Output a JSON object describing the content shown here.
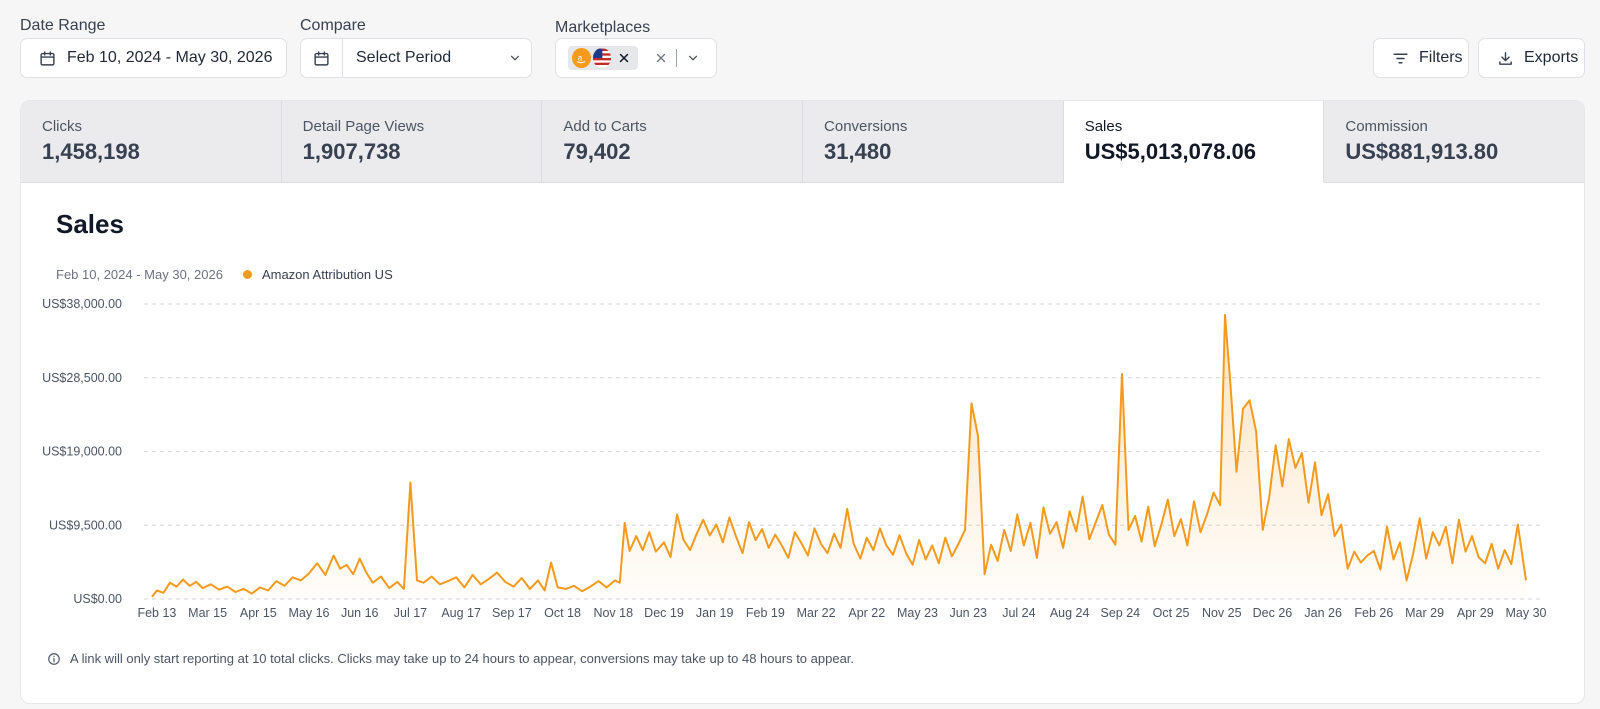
{
  "filters": {
    "date_range": {
      "label": "Date Range",
      "value": "Feb 10, 2024 - May 30, 2026"
    },
    "compare": {
      "label": "Compare",
      "placeholder": "Select Period"
    },
    "marketplaces": {
      "label": "Marketplaces"
    },
    "filters_button": "Filters",
    "exports_button": "Exports"
  },
  "metrics": [
    {
      "label": "Clicks",
      "value": "1,458,198"
    },
    {
      "label": "Detail Page Views",
      "value": "1,907,738"
    },
    {
      "label": "Add to Carts",
      "value": "79,402"
    },
    {
      "label": "Conversions",
      "value": "31,480"
    },
    {
      "label": "Sales",
      "value": "US$5,013,078.06"
    },
    {
      "label": "Commission",
      "value": "US$881,913.80"
    }
  ],
  "chart": {
    "title": "Sales",
    "date_range": "Feb 10, 2024 - May 30, 2026",
    "color": "#f59a1c"
  },
  "chart_data": {
    "type": "area",
    "series": [
      {
        "name": "Amazon Attribution US"
      }
    ],
    "y_ticks": [
      "US$0.00",
      "US$9,500.00",
      "US$19,000.00",
      "US$28,500.00",
      "US$38,000.00"
    ],
    "ylim": [
      0,
      38000
    ],
    "grid": true,
    "x_ticks": [
      "Feb 13",
      "Mar 15",
      "Apr 15",
      "May 16",
      "Jun 16",
      "Jul 17",
      "Aug 17",
      "Sep 17",
      "Oct 18",
      "Nov 18",
      "Dec 19",
      "Jan 19",
      "Feb 19",
      "Mar 22",
      "Apr 22",
      "May 23",
      "Jun 23",
      "Jul 24",
      "Aug 24",
      "Sep 24",
      "Oct 25",
      "Nov 25",
      "Dec 26",
      "Jan 26",
      "Feb 26",
      "Mar 29",
      "Apr 29",
      "May 30"
    ],
    "x_tick_days": [
      3,
      34,
      65,
      96,
      127,
      158,
      189,
      220,
      251,
      282,
      313,
      344,
      375,
      406,
      437,
      468,
      499,
      530,
      561,
      592,
      623,
      654,
      685,
      716,
      747,
      778,
      809,
      840
    ],
    "total_days": 840,
    "values": [
      [
        0,
        300
      ],
      [
        3,
        1100
      ],
      [
        7,
        800
      ],
      [
        11,
        2100
      ],
      [
        15,
        1600
      ],
      [
        19,
        2500
      ],
      [
        23,
        1700
      ],
      [
        27,
        2200
      ],
      [
        31,
        1400
      ],
      [
        36,
        1900
      ],
      [
        41,
        1200
      ],
      [
        46,
        1600
      ],
      [
        51,
        900
      ],
      [
        56,
        1300
      ],
      [
        61,
        700
      ],
      [
        66,
        1500
      ],
      [
        71,
        1100
      ],
      [
        76,
        2300
      ],
      [
        81,
        1700
      ],
      [
        86,
        2800
      ],
      [
        91,
        2400
      ],
      [
        96,
        3300
      ],
      [
        101,
        4600
      ],
      [
        106,
        3100
      ],
      [
        111,
        5600
      ],
      [
        115,
        3900
      ],
      [
        119,
        4400
      ],
      [
        123,
        3200
      ],
      [
        127,
        5200
      ],
      [
        131,
        3400
      ],
      [
        135,
        2100
      ],
      [
        140,
        2900
      ],
      [
        145,
        1400
      ],
      [
        150,
        2200
      ],
      [
        154,
        1300
      ],
      [
        158,
        15000
      ],
      [
        162,
        2400
      ],
      [
        166,
        2100
      ],
      [
        171,
        2900
      ],
      [
        176,
        1900
      ],
      [
        181,
        2300
      ],
      [
        186,
        2800
      ],
      [
        191,
        1500
      ],
      [
        196,
        3100
      ],
      [
        201,
        1900
      ],
      [
        206,
        2600
      ],
      [
        211,
        3400
      ],
      [
        216,
        2200
      ],
      [
        221,
        1600
      ],
      [
        226,
        2700
      ],
      [
        231,
        1300
      ],
      [
        236,
        2400
      ],
      [
        240,
        1100
      ],
      [
        244,
        4700
      ],
      [
        248,
        1500
      ],
      [
        253,
        1300
      ],
      [
        258,
        1700
      ],
      [
        263,
        1000
      ],
      [
        268,
        1600
      ],
      [
        273,
        2300
      ],
      [
        278,
        1500
      ],
      [
        283,
        2400
      ],
      [
        286,
        2100
      ],
      [
        289,
        9800
      ],
      [
        292,
        6200
      ],
      [
        296,
        8100
      ],
      [
        300,
        6300
      ],
      [
        304,
        8600
      ],
      [
        308,
        6100
      ],
      [
        313,
        7300
      ],
      [
        317,
        5400
      ],
      [
        321,
        10900
      ],
      [
        325,
        7600
      ],
      [
        329,
        6300
      ],
      [
        333,
        8400
      ],
      [
        337,
        10200
      ],
      [
        341,
        8200
      ],
      [
        345,
        9600
      ],
      [
        349,
        7300
      ],
      [
        353,
        10500
      ],
      [
        357,
        8100
      ],
      [
        361,
        5900
      ],
      [
        365,
        9900
      ],
      [
        369,
        7600
      ],
      [
        373,
        9000
      ],
      [
        377,
        6600
      ],
      [
        381,
        8300
      ],
      [
        385,
        6900
      ],
      [
        389,
        5300
      ],
      [
        393,
        8600
      ],
      [
        397,
        7200
      ],
      [
        401,
        5600
      ],
      [
        405,
        9100
      ],
      [
        409,
        7100
      ],
      [
        413,
        5900
      ],
      [
        417,
        8400
      ],
      [
        421,
        6600
      ],
      [
        425,
        11600
      ],
      [
        429,
        7100
      ],
      [
        433,
        5200
      ],
      [
        437,
        7900
      ],
      [
        441,
        6300
      ],
      [
        445,
        9100
      ],
      [
        449,
        6900
      ],
      [
        453,
        5700
      ],
      [
        457,
        8200
      ],
      [
        461,
        5900
      ],
      [
        465,
        4400
      ],
      [
        469,
        7600
      ],
      [
        473,
        5100
      ],
      [
        477,
        6900
      ],
      [
        481,
        4600
      ],
      [
        485,
        7900
      ],
      [
        489,
        5500
      ],
      [
        493,
        7100
      ],
      [
        497,
        8900
      ],
      [
        501,
        25200
      ],
      [
        505,
        21000
      ],
      [
        509,
        3200
      ],
      [
        513,
        7000
      ],
      [
        517,
        4900
      ],
      [
        521,
        8900
      ],
      [
        525,
        6200
      ],
      [
        529,
        10900
      ],
      [
        533,
        6900
      ],
      [
        537,
        9800
      ],
      [
        541,
        5300
      ],
      [
        545,
        11800
      ],
      [
        549,
        8400
      ],
      [
        553,
        9900
      ],
      [
        557,
        6600
      ],
      [
        561,
        11300
      ],
      [
        565,
        8700
      ],
      [
        569,
        13200
      ],
      [
        573,
        7700
      ],
      [
        577,
        9900
      ],
      [
        581,
        12100
      ],
      [
        585,
        8300
      ],
      [
        589,
        7000
      ],
      [
        593,
        29000
      ],
      [
        597,
        8900
      ],
      [
        601,
        10700
      ],
      [
        605,
        7400
      ],
      [
        609,
        11900
      ],
      [
        613,
        6800
      ],
      [
        617,
        9500
      ],
      [
        621,
        12800
      ],
      [
        625,
        8100
      ],
      [
        629,
        10300
      ],
      [
        633,
        6900
      ],
      [
        637,
        12600
      ],
      [
        641,
        8600
      ],
      [
        645,
        10900
      ],
      [
        649,
        13700
      ],
      [
        653,
        12100
      ],
      [
        656,
        36600
      ],
      [
        659,
        28600
      ],
      [
        663,
        16400
      ],
      [
        667,
        24500
      ],
      [
        671,
        25600
      ],
      [
        675,
        21600
      ],
      [
        679,
        8900
      ],
      [
        683,
        13100
      ],
      [
        687,
        19800
      ],
      [
        691,
        14500
      ],
      [
        695,
        20600
      ],
      [
        699,
        16900
      ],
      [
        703,
        18800
      ],
      [
        707,
        12400
      ],
      [
        711,
        17600
      ],
      [
        715,
        10800
      ],
      [
        719,
        13500
      ],
      [
        723,
        8100
      ],
      [
        727,
        9600
      ],
      [
        731,
        3900
      ],
      [
        735,
        6100
      ],
      [
        739,
        4700
      ],
      [
        743,
        5600
      ],
      [
        747,
        6200
      ],
      [
        751,
        3800
      ],
      [
        755,
        9300
      ],
      [
        759,
        5100
      ],
      [
        763,
        7300
      ],
      [
        767,
        2400
      ],
      [
        771,
        5800
      ],
      [
        775,
        10400
      ],
      [
        779,
        5200
      ],
      [
        783,
        8600
      ],
      [
        787,
        6900
      ],
      [
        791,
        9300
      ],
      [
        795,
        4600
      ],
      [
        799,
        10200
      ],
      [
        803,
        6100
      ],
      [
        807,
        8100
      ],
      [
        811,
        5400
      ],
      [
        815,
        4600
      ],
      [
        819,
        7100
      ],
      [
        823,
        3900
      ],
      [
        827,
        6300
      ],
      [
        831,
        4500
      ],
      [
        835,
        9600
      ],
      [
        838,
        5300
      ],
      [
        840,
        2400
      ]
    ]
  },
  "footnote": "A link will only start reporting at 10 total clicks. Clicks may take up to 24 hours to appear, conversions may take up to 48 hours to appear."
}
